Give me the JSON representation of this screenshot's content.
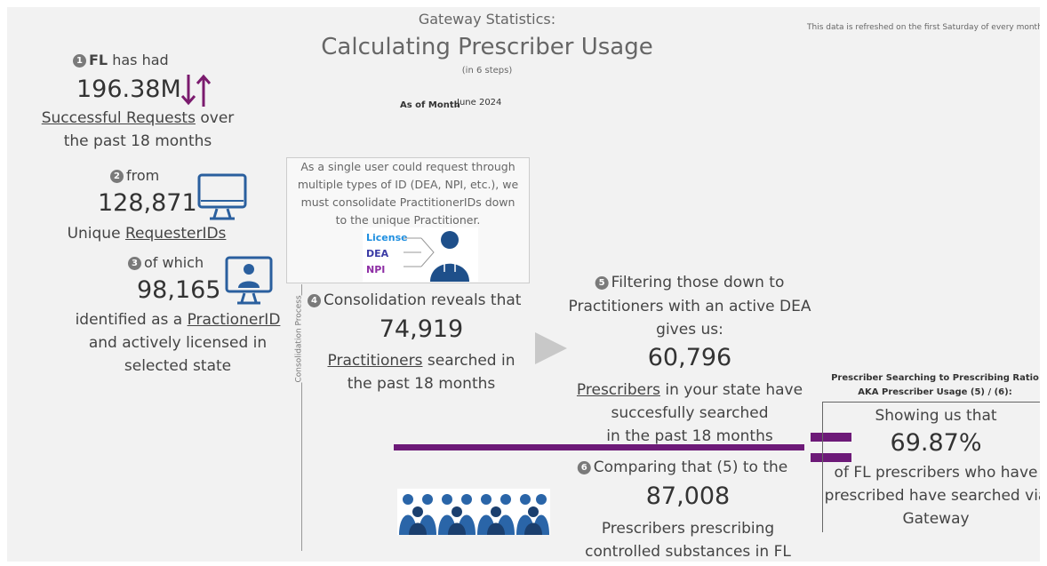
{
  "header": {
    "title": "Gateway Statistics:",
    "subtitle": "Calculating Prescriber Usage",
    "note": "(in 6 steps)",
    "as_of_label": "As of Month",
    "as_of_value": "June 2024",
    "refresh_note": "This data is refreshed on the first Saturday of every month."
  },
  "steps": [
    {
      "number": "1",
      "lead_bold": "FL",
      "lead": "has had",
      "value": "196.38M",
      "link": "Successful Requests",
      "link_suffix": "over",
      "lines": [
        "the past 18 months"
      ]
    },
    {
      "number": "2",
      "lead": "from",
      "value": "128,871",
      "prefix": "Unique",
      "link": "RequesterIDs"
    },
    {
      "number": "3",
      "lead": "of which",
      "value": "98,165",
      "prefix": "identified as a",
      "link": "PractionerID",
      "lines": [
        "and actively licensed in",
        "selected state"
      ]
    },
    {
      "number": "4",
      "lead": "Consolidation reveals that",
      "value": "74,919",
      "link": "Practitioners",
      "link_suffix": "searched in",
      "lines": [
        "the past 18 months"
      ]
    },
    {
      "number": "5",
      "lead_lines": [
        "Filtering those down to",
        "Practitioners with an active DEA",
        "gives us:"
      ],
      "value": "60,796",
      "link": "Prescribers",
      "link_suffix": "in your state have",
      "lines": [
        "succesfully searched",
        "in the past 18 months"
      ]
    },
    {
      "number": "6",
      "lead": "Comparing that (5) to the",
      "value": "87,008",
      "lines": [
        "Prescribers prescribing",
        "controlled substances in FL"
      ]
    }
  ],
  "note_box": {
    "lines": [
      "As a single user could request through",
      "multiple types of ID (DEA, NPI, etc.), we",
      "must consolidate PractitionerIDs down",
      "to the unique Practitioner."
    ],
    "id_types": [
      "License",
      "DEA",
      "NPI"
    ]
  },
  "process_label": "Consolidation Process",
  "ratio": {
    "title": "Prescriber Searching to Prescribing Ratio",
    "subtitle": "AKA Prescriber Usage (5) / (6):",
    "lead": "Showing us that",
    "value": "69.87%",
    "lines": [
      "of FL prescribers who have",
      "prescribed have searched via",
      "Gateway"
    ]
  }
}
